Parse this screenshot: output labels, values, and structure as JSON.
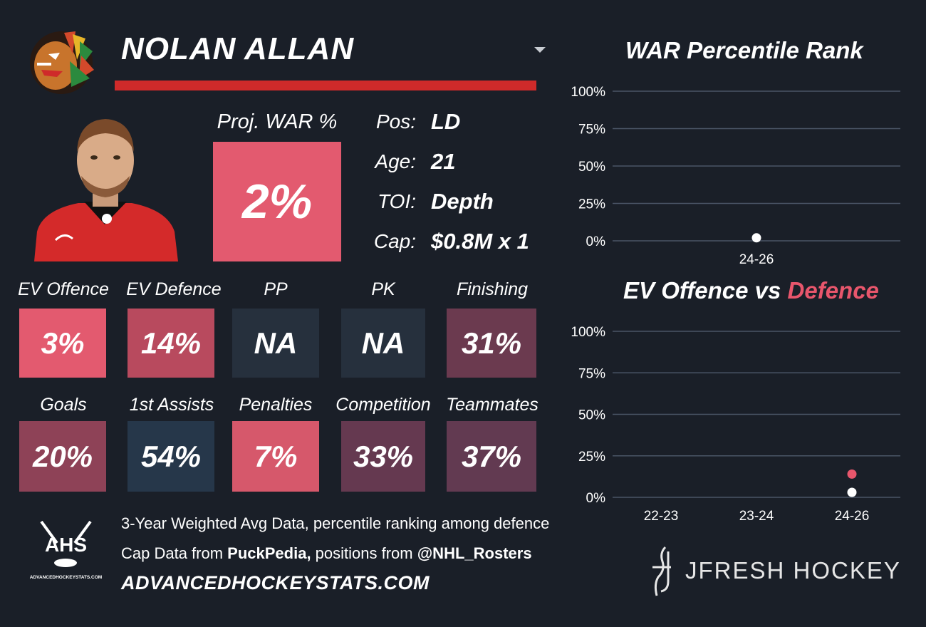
{
  "player": {
    "name": "NOLAN ALLAN",
    "proj_war_label": "Proj. WAR %",
    "proj_war_value": "2%"
  },
  "info": [
    {
      "key": "Pos:",
      "value": "LD"
    },
    {
      "key": "Age:",
      "value": "21"
    },
    {
      "key": "TOI:",
      "value": "Depth"
    },
    {
      "key": "Cap:",
      "value": "$0.8M x 1"
    }
  ],
  "stats": [
    {
      "label": "EV Offence",
      "value": "3%",
      "color": "#e35a6f"
    },
    {
      "label": "EV Defence",
      "value": "14%",
      "color": "#b84a5e"
    },
    {
      "label": "PP",
      "value": "NA",
      "color": "#26303d"
    },
    {
      "label": "PK",
      "value": "NA",
      "color": "#26303d"
    },
    {
      "label": "Finishing",
      "value": "31%",
      "color": "#6b3a4f"
    },
    {
      "label": "Goals",
      "value": "20%",
      "color": "#8e4257"
    },
    {
      "label": "1st Assists",
      "value": "54%",
      "color": "#26374a"
    },
    {
      "label": "Penalties",
      "value": "7%",
      "color": "#d6586b"
    },
    {
      "label": "Competition",
      "value": "33%",
      "color": "#653950"
    },
    {
      "label": "Teammates",
      "value": "37%",
      "color": "#623a51"
    }
  ],
  "charts": {
    "war_title": "WAR Percentile Rank",
    "ev_title_part1": "EV Offence vs ",
    "ev_title_part2": "Defence",
    "ev_title_part2_color": "#e8566c"
  },
  "chart_data": [
    {
      "type": "scatter",
      "title": "WAR Percentile Rank",
      "categories": [
        "24-26"
      ],
      "series": [
        {
          "values": [
            2
          ],
          "color": "#ffffff"
        }
      ],
      "ylim": [
        0,
        100
      ],
      "yticks": [
        "0%",
        "25%",
        "50%",
        "75%",
        "100%"
      ],
      "grid": true
    },
    {
      "type": "scatter",
      "title": "EV Offence vs Defence",
      "categories": [
        "22-23",
        "23-24",
        "24-26"
      ],
      "series": [
        {
          "values": [
            null,
            null,
            3
          ],
          "color": "#ffffff"
        },
        {
          "values": [
            null,
            null,
            14
          ],
          "color": "#e8566c"
        }
      ],
      "ylim": [
        0,
        100
      ],
      "yticks": [
        "0%",
        "25%",
        "50%",
        "75%",
        "100%"
      ],
      "grid": true
    }
  ],
  "footer": {
    "line1": "3-Year Weighted Avg Data, percentile ranking among defence",
    "line2_pre": "Cap Data from ",
    "line2_b1": "PuckPedia,",
    "line2_mid": " positions from ",
    "line2_b2": "@NHL_Rosters",
    "url": "ADVANCEDHOCKEYSTATS.COM",
    "ahs_text": "AHS",
    "ahs_sub": "ADVANCEDHOCKEYSTATS.COM",
    "brand": "JFRESH HOCKEY"
  }
}
